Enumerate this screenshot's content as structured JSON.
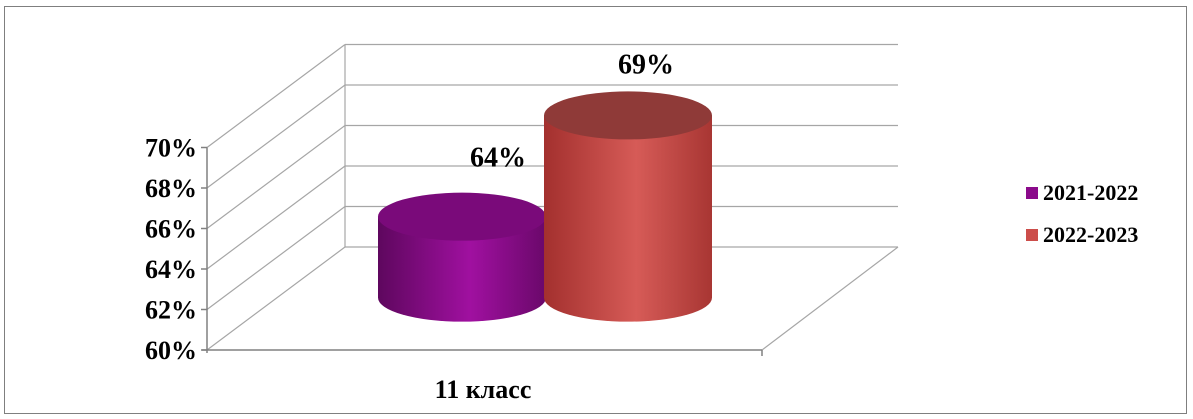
{
  "chart_data": {
    "type": "bar",
    "style": "3d-cylinder",
    "categories": [
      "11 класс"
    ],
    "series": [
      {
        "name": "2021-2022",
        "values": [
          64
        ],
        "color": "#8b0a8b"
      },
      {
        "name": "2022-2023",
        "values": [
          69
        ],
        "color": "#cc4d4a"
      }
    ],
    "data_labels": [
      "64%",
      "69%"
    ],
    "ylim": [
      60,
      70
    ],
    "yticks": [
      "60%",
      "62%",
      "64%",
      "66%",
      "68%",
      "70%"
    ],
    "grid": true,
    "legend_position": "right"
  }
}
